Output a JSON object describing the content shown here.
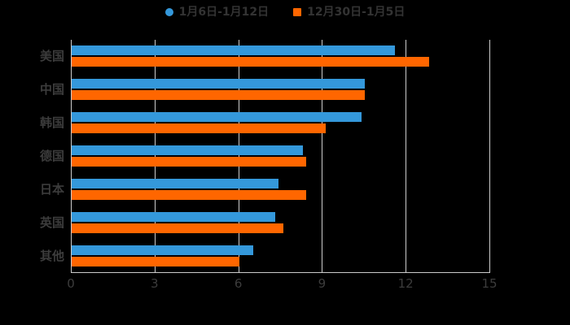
{
  "chart_data": {
    "type": "bar",
    "orientation": "horizontal",
    "categories": [
      "美国",
      "中国",
      "韩国",
      "德国",
      "日本",
      "英国",
      "其他"
    ],
    "series": [
      {
        "name": "1月6日-1月12日",
        "marker": "circle",
        "color": "#3498db",
        "values": [
          11.6,
          10.5,
          10.4,
          8.3,
          7.4,
          7.3,
          6.5
        ]
      },
      {
        "name": "12月30日-1月5日",
        "marker": "square",
        "color": "#ff6600",
        "values": [
          12.8,
          10.5,
          9.1,
          8.4,
          8.4,
          7.6,
          6.0
        ]
      }
    ],
    "xlim": [
      0,
      15
    ],
    "xticks": [
      0,
      3,
      6,
      9,
      12,
      15
    ],
    "grid": true,
    "legend_position": "top",
    "background_color": "#000000",
    "axis_color": "#cccccc",
    "label_color": "#3c3c3c"
  }
}
